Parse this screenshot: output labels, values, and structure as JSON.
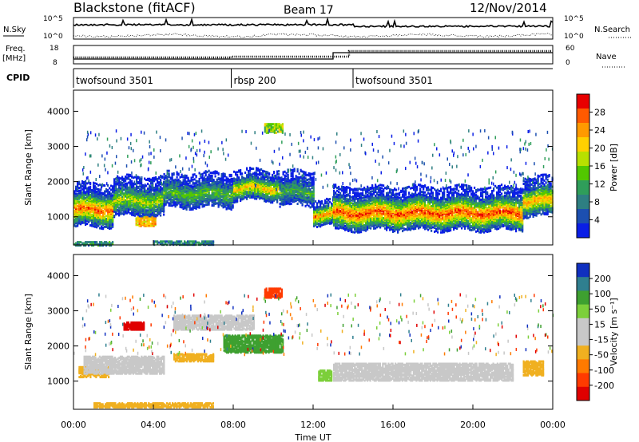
{
  "header": {
    "station": "Blackstone (fitACF)",
    "beam": "Beam 17",
    "date": "12/Nov/2014"
  },
  "noise_panel": {
    "left_label": "N.Sky",
    "right_label": "N.Search",
    "tick_top": "10^5",
    "tick_bottom": "10^0"
  },
  "freq_panel": {
    "left_label_line1": "Freq.",
    "left_label_line2": "[MHz]",
    "left_tick_top": "18",
    "left_tick_bottom": "8",
    "right_label": "Nave",
    "right_tick_top": "60",
    "right_tick_bottom": "0"
  },
  "cpid": {
    "label": "CPID",
    "segments": [
      {
        "name": "twofsound 3501",
        "start": 0,
        "end": 7.9
      },
      {
        "name": "rbsp 200",
        "start": 7.9,
        "end": 14.0
      },
      {
        "name": "twofsound 3501",
        "start": 14.0,
        "end": 24
      }
    ]
  },
  "colorbars": {
    "power": {
      "label": "Power [dB]",
      "ticks": [
        "28",
        "24",
        "20",
        "16",
        "12",
        "8",
        "4"
      ],
      "colors": [
        "#e80000",
        "#ff5a00",
        "#ff9a00",
        "#ffd000",
        "#b8e000",
        "#52c800",
        "#2f9e5a",
        "#2e7f82",
        "#1c4fb0",
        "#0a1ee6"
      ]
    },
    "velocity": {
      "label": "Velocity [m s⁻¹]",
      "ticks": [
        "200",
        "100",
        "50",
        "15",
        "-15",
        "-50",
        "-100",
        "-200"
      ],
      "colors": [
        "#1030c0",
        "#2f7f8f",
        "#3ea030",
        "#7ccf3a",
        "#c8c8c8",
        "#c8c8c8",
        "#f0b020",
        "#ff7a00",
        "#ff3a00",
        "#e00000"
      ]
    }
  },
  "chart_data": [
    {
      "type": "heatmap",
      "quantity": "Power",
      "ylabel": "Slant Range [km]",
      "ylim": [
        200,
        4600
      ],
      "xlim": [
        0,
        24
      ],
      "yticks": [
        1000,
        2000,
        3000,
        4000
      ],
      "bands": [
        {
          "t0": 0.0,
          "t1": 2.0,
          "center": 1250,
          "width": 500,
          "level": 0.85
        },
        {
          "t0": 2.0,
          "t1": 4.5,
          "center": 1500,
          "width": 450,
          "level": 0.55
        },
        {
          "t0": 4.5,
          "t1": 8.0,
          "center": 1700,
          "width": 400,
          "level": 0.45
        },
        {
          "t0": 8.0,
          "t1": 10.3,
          "center": 1850,
          "width": 350,
          "level": 0.7
        },
        {
          "t0": 10.3,
          "t1": 12.0,
          "center": 1750,
          "width": 400,
          "level": 0.4
        },
        {
          "t0": 12.0,
          "t1": 13.0,
          "center": 1100,
          "width": 300,
          "level": 0.8
        },
        {
          "t0": 13.0,
          "t1": 22.5,
          "center": 1150,
          "width": 500,
          "level": 0.9
        },
        {
          "t0": 22.5,
          "t1": 24.0,
          "center": 1500,
          "width": 450,
          "level": 0.75
        }
      ],
      "patches": [
        {
          "t": 3.6,
          "r": 900,
          "dt": 1.0,
          "dr": 250,
          "level": 0.7
        },
        {
          "t": 10.0,
          "r": 3550,
          "dt": 0.9,
          "dr": 250,
          "level": 0.5
        },
        {
          "t": 1.0,
          "r": 280,
          "dt": 2.0,
          "dr": 120,
          "level": 0.3
        },
        {
          "t": 5.5,
          "r": 300,
          "dt": 3.0,
          "dr": 120,
          "level": 0.25
        }
      ]
    },
    {
      "type": "heatmap",
      "quantity": "Velocity",
      "ylabel": "Slant Range [km]",
      "xlabel": "Time UT",
      "ylim": [
        200,
        4600
      ],
      "xlim": [
        0,
        24
      ],
      "yticks": [
        1000,
        2000,
        3000,
        4000
      ],
      "xticks": [
        "00:00",
        "04:00",
        "08:00",
        "12:00",
        "16:00",
        "20:00",
        "00:00"
      ],
      "patches": [
        {
          "t": 3.0,
          "r": 2600,
          "dt": 1.0,
          "dr": 200,
          "color": "#e00000"
        },
        {
          "t": 10.0,
          "r": 3550,
          "dt": 0.9,
          "dr": 280,
          "color": "#ff3a00"
        },
        {
          "t": 9.0,
          "r": 2100,
          "dt": 3.0,
          "dr": 500,
          "color": "#3ea030"
        },
        {
          "t": 1.0,
          "r": 1300,
          "dt": 1.5,
          "dr": 300,
          "color": "#f0b020"
        },
        {
          "t": 6.0,
          "r": 1700,
          "dt": 2.0,
          "dr": 200,
          "color": "#f0b020"
        },
        {
          "t": 4.0,
          "r": 350,
          "dt": 6.0,
          "dr": 120,
          "color": "#f0b020"
        },
        {
          "t": 12.6,
          "r": 1200,
          "dt": 0.7,
          "dr": 300,
          "color": "#7ccf3a"
        },
        {
          "t": 17.5,
          "r": 1300,
          "dt": 9.0,
          "dr": 500,
          "color": "#c8c8c8"
        },
        {
          "t": 2.5,
          "r": 1500,
          "dt": 4.0,
          "dr": 500,
          "color": "#c8c8c8"
        },
        {
          "t": 7.0,
          "r": 2700,
          "dt": 4.0,
          "dr": 400,
          "color": "#c8c8c8"
        },
        {
          "t": 23.0,
          "r": 1400,
          "dt": 1.0,
          "dr": 400,
          "color": "#f0b020"
        }
      ]
    }
  ],
  "axes": {
    "xlabel": "Time UT",
    "ylabel": "Slant Range [km]"
  }
}
